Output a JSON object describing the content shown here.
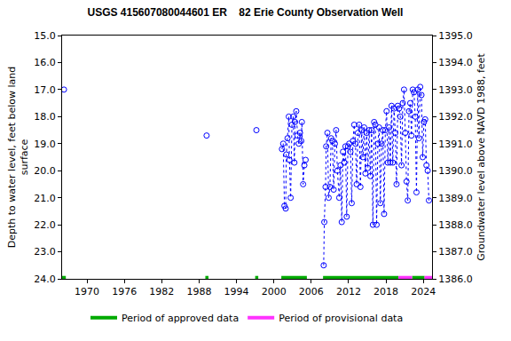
{
  "chart_data": {
    "type": "scatter",
    "title": "USGS 415607080044601 ER    82 Erie County Observation Well",
    "y_label": "Depth to water level, feet below land surface",
    "y2_label": "Groundwater level above NAVD 1988, feet",
    "xlim": [
      1966,
      2025.4
    ],
    "xticks": [
      1970,
      1976,
      1982,
      1988,
      1994,
      2000,
      2006,
      2012,
      2018,
      2024
    ],
    "ylim": [
      24,
      15
    ],
    "yticks": [
      {
        "value": 15,
        "label": "15.0"
      },
      {
        "value": 16,
        "label": "16.0"
      },
      {
        "value": 17,
        "label": "17.0"
      },
      {
        "value": 18,
        "label": "18.0"
      },
      {
        "value": 19,
        "label": "19.0"
      },
      {
        "value": 20,
        "label": "20.0"
      },
      {
        "value": 21,
        "label": "21.0"
      },
      {
        "value": 22,
        "label": "22.0"
      },
      {
        "value": 23,
        "label": "23.0"
      },
      {
        "value": 24,
        "label": "24.0"
      }
    ],
    "y2lim": [
      1386,
      1395
    ],
    "y2ticks": [
      {
        "value": 1386,
        "label": "1386.0"
      },
      {
        "value": 1387,
        "label": "1387.0"
      },
      {
        "value": 1388,
        "label": "1388.0"
      },
      {
        "value": 1389,
        "label": "1389.0"
      },
      {
        "value": 1390,
        "label": "1390.0"
      },
      {
        "value": 1391,
        "label": "1391.0"
      },
      {
        "value": 1392,
        "label": "1392.0"
      },
      {
        "value": 1393,
        "label": "1393.0"
      },
      {
        "value": 1394,
        "label": "1394.0"
      },
      {
        "value": 1395,
        "label": "1395.0"
      }
    ],
    "grid": false,
    "legend": "bottom",
    "series": [
      {
        "color": "#0000ff",
        "marker": "circle-open",
        "line_style": "dot",
        "x": [
          1966.3,
          null,
          1989.2,
          null,
          1997.2,
          null,
          2001.3,
          2001.5,
          2001.7,
          2001.9,
          2002.0,
          2002.2,
          2002.4,
          2002.5,
          2002.7,
          2002.9,
          2003.1,
          2003.3,
          2003.4,
          2003.6,
          2003.8,
          2004.0,
          2004.2,
          2004.4,
          2004.5,
          2004.7,
          2004.9,
          2005.1,
          null,
          2008.0,
          2008.1,
          2008.3,
          2008.4,
          2008.6,
          2008.8,
          2009.0,
          2009.2,
          2009.4,
          2009.6,
          2009.8,
          2010.0,
          2010.2,
          2010.5,
          2010.7,
          2010.9,
          2011.1,
          2011.3,
          2011.5,
          2011.7,
          2011.9,
          2012.1,
          2012.3,
          2012.5,
          2012.7,
          2012.9,
          2013.1,
          2013.3,
          2013.5,
          2013.7,
          2013.9,
          2014.1,
          2014.3,
          2014.5,
          2014.7,
          2014.9,
          2015.1,
          2015.3,
          2015.5,
          2015.7,
          2015.9,
          2016.1,
          2016.3,
          2016.5,
          2016.7,
          2016.9,
          2017.1,
          2017.3,
          2017.5,
          2017.7,
          2017.9,
          2018.1,
          2018.3,
          2018.5,
          2018.7,
          2018.9,
          2019.1,
          2019.3,
          2019.5,
          2019.7,
          2019.9,
          2020.1,
          2020.3,
          2020.5,
          2020.7,
          2020.9,
          2021.1,
          2021.3,
          2021.5,
          2021.7,
          2021.9,
          2022.1,
          2022.3,
          2022.5,
          2022.7,
          2022.9,
          2023.1,
          2023.3,
          2023.5,
          2023.7,
          2023.9,
          2024.1,
          2024.3,
          2024.5,
          2024.7,
          2024.9
        ],
        "values": [
          17.0,
          null,
          18.7,
          null,
          18.5,
          null,
          19.2,
          19.0,
          21.3,
          21.4,
          19.4,
          18.8,
          18.0,
          19.6,
          21.0,
          18.3,
          18.0,
          19.7,
          18.2,
          17.8,
          18.7,
          19.0,
          18.6,
          18.9,
          18.2,
          20.5,
          19.8,
          19.6,
          null,
          23.5,
          21.9,
          20.6,
          19.1,
          18.6,
          21.0,
          20.6,
          18.8,
          18.9,
          20.7,
          19.0,
          18.5,
          20.0,
          21.0,
          19.8,
          21.9,
          19.3,
          19.7,
          19.1,
          21.7,
          19.1,
          19.0,
          19.3,
          21.2,
          18.9,
          18.3,
          19.0,
          20.5,
          18.6,
          18.3,
          20.6,
          18.5,
          19.5,
          18.4,
          20.1,
          18.6,
          19.9,
          18.5,
          20.2,
          18.5,
          22.0,
          18.2,
          18.3,
          22.0,
          19.0,
          18.4,
          21.2,
          19.0,
          18.5,
          21.6,
          18.5,
          17.8,
          19.7,
          18.4,
          19.7,
          17.6,
          19.7,
          17.7,
          18.6,
          20.5,
          17.6,
          17.7,
          18.0,
          19.8,
          17.5,
          17.0,
          18.6,
          20.4,
          21.1,
          17.8,
          17.5,
          18.7,
          17.0,
          17.1,
          18.0,
          20.8,
          17.0,
          18.8,
          16.9,
          17.2,
          19.5,
          18.2,
          18.1,
          19.8,
          20.0,
          21.1
        ]
      }
    ],
    "periods": [
      {
        "name": "Period of approved data",
        "color": "#00aa00",
        "ranges": [
          [
            1966,
            1966.6
          ],
          [
            1989,
            1989.5
          ],
          [
            1997,
            1997.5
          ],
          [
            2001.2,
            2005.3
          ],
          [
            2007.9,
            2020.0
          ],
          [
            2022.2,
            2024.2
          ]
        ]
      },
      {
        "name": "Period of provisional data",
        "color": "#ff33ff",
        "ranges": [
          [
            2020.0,
            2022.2
          ],
          [
            2024.2,
            2025.4
          ]
        ]
      }
    ]
  }
}
